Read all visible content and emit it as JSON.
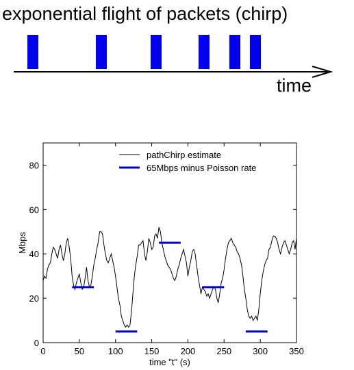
{
  "diagram": {
    "title": "exponential flight of packets (chirp)",
    "axis_label": "time",
    "packet_count": 6,
    "packet_color": "#0000ee"
  },
  "chart_data": {
    "type": "line",
    "xlabel": "time \"t\" (s)",
    "ylabel": "Mbps",
    "xlim": [
      0,
      350
    ],
    "ylim": [
      0,
      90
    ],
    "xticks": [
      0,
      50,
      100,
      150,
      200,
      250,
      300,
      350
    ],
    "yticks": [
      0,
      20,
      40,
      60,
      80
    ],
    "legend_position": "top-right",
    "series": [
      {
        "name": "pathChirp estimate",
        "color": "#000000",
        "style": "line",
        "x": [
          0,
          2,
          4,
          6,
          8,
          10,
          12,
          14,
          16,
          18,
          20,
          22,
          24,
          26,
          28,
          30,
          32,
          34,
          36,
          38,
          40,
          42,
          44,
          46,
          48,
          50,
          52,
          54,
          56,
          58,
          60,
          62,
          64,
          66,
          68,
          70,
          72,
          74,
          76,
          78,
          80,
          82,
          84,
          86,
          88,
          90,
          92,
          94,
          96,
          98,
          100,
          102,
          104,
          106,
          108,
          110,
          112,
          114,
          116,
          118,
          120,
          122,
          124,
          126,
          128,
          130,
          132,
          134,
          136,
          138,
          140,
          142,
          144,
          146,
          148,
          150,
          152,
          154,
          156,
          158,
          160,
          162,
          164,
          166,
          168,
          170,
          172,
          174,
          176,
          178,
          180,
          182,
          184,
          186,
          188,
          190,
          192,
          194,
          196,
          198,
          200,
          202,
          204,
          206,
          208,
          210,
          212,
          214,
          216,
          218,
          220,
          222,
          224,
          226,
          228,
          230,
          232,
          234,
          236,
          238,
          240,
          242,
          244,
          246,
          248,
          250,
          252,
          254,
          256,
          258,
          260,
          262,
          264,
          266,
          268,
          270,
          272,
          274,
          276,
          278,
          280,
          282,
          284,
          286,
          288,
          290,
          292,
          294,
          296,
          298,
          300,
          302,
          304,
          306,
          308,
          310,
          312,
          314,
          316,
          318,
          320,
          322,
          324,
          326,
          328,
          330,
          332,
          334,
          336,
          338,
          340,
          342,
          344,
          346,
          348,
          350
        ],
        "y": [
          28,
          30,
          29,
          33,
          35,
          36,
          40,
          43,
          42,
          40,
          38,
          42,
          44,
          40,
          37,
          40,
          45,
          47,
          43,
          38,
          30,
          26,
          24,
          27,
          29,
          31,
          27,
          24,
          25,
          29,
          34,
          28,
          25,
          26,
          30,
          35,
          38,
          42,
          45,
          50,
          50,
          49,
          44,
          40,
          37,
          36,
          38,
          40,
          37,
          34,
          30,
          25,
          20,
          17,
          12,
          10,
          8,
          7,
          8,
          7,
          8,
          14,
          22,
          30,
          35,
          39,
          44,
          44,
          45,
          46,
          40,
          37,
          41,
          47,
          45,
          42,
          43,
          48,
          49,
          47,
          52,
          50,
          45,
          42,
          39,
          37,
          35,
          34,
          33,
          31,
          29,
          28,
          30,
          33,
          35,
          38,
          40,
          42,
          39,
          36,
          30,
          34,
          37,
          41,
          42,
          40,
          35,
          30,
          26,
          22,
          25,
          24,
          23,
          21,
          22,
          20,
          22,
          24,
          25,
          24,
          20,
          18,
          22,
          27,
          29,
          33,
          38,
          42,
          45,
          46,
          47,
          45,
          44,
          43,
          41,
          40,
          38,
          35,
          30,
          24,
          20,
          15,
          12,
          11,
          12,
          10,
          11,
          12,
          10,
          15,
          22,
          28,
          32,
          35,
          37,
          38,
          42,
          43,
          46,
          48,
          48,
          47,
          45,
          42,
          40,
          43,
          45,
          46,
          44,
          42,
          40,
          42,
          45,
          46,
          42,
          47
        ]
      },
      {
        "name": "65Mbps minus Poisson rate",
        "color": "#0000cc",
        "style": "segments",
        "segments": [
          {
            "x0": 40,
            "x1": 70,
            "y": 25
          },
          {
            "x0": 100,
            "x1": 130,
            "y": 5
          },
          {
            "x0": 160,
            "x1": 190,
            "y": 45
          },
          {
            "x0": 220,
            "x1": 250,
            "y": 25
          },
          {
            "x0": 280,
            "x1": 310,
            "y": 5
          }
        ]
      }
    ]
  }
}
